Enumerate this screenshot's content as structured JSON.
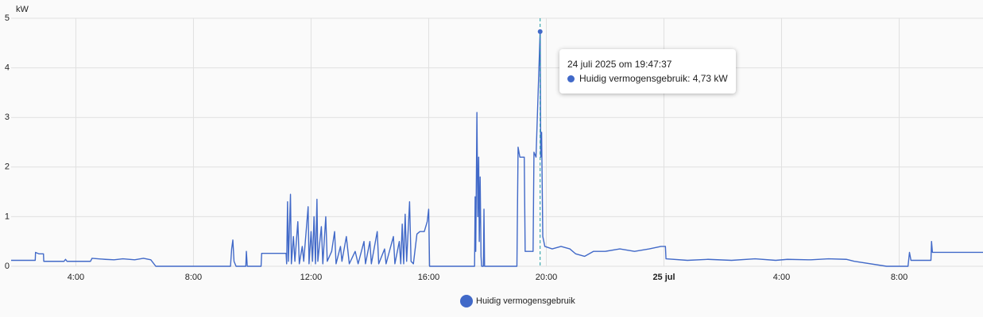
{
  "chart_data": {
    "type": "line",
    "y_label": "kW",
    "x": [
      1.8,
      2.62,
      2.63,
      2.75,
      2.9,
      2.91,
      3.6,
      3.65,
      3.7,
      4.5,
      4.55,
      5.0,
      5.3,
      5.6,
      6.0,
      6.3,
      6.55,
      6.72,
      9.26,
      9.3,
      9.34,
      9.38,
      9.45,
      9.78,
      9.8,
      9.83,
      10.3,
      10.32,
      11.15,
      11.17,
      11.2,
      11.23,
      11.3,
      11.33,
      11.4,
      11.45,
      11.55,
      11.6,
      11.7,
      11.75,
      11.9,
      11.93,
      12.0,
      12.05,
      12.1,
      12.15,
      12.2,
      12.23,
      12.35,
      12.4,
      12.5,
      12.55,
      12.7,
      12.8,
      12.85,
      13.0,
      13.05,
      13.2,
      13.3,
      13.5,
      13.6,
      13.8,
      13.85,
      14.0,
      14.05,
      14.25,
      14.3,
      14.5,
      14.55,
      14.8,
      14.85,
      15.0,
      15.05,
      15.1,
      15.15,
      15.2,
      15.25,
      15.35,
      15.4,
      15.48,
      15.6,
      15.7,
      15.85,
      15.95,
      16.0,
      16.03,
      17.56,
      17.58,
      17.6,
      17.64,
      17.67,
      17.7,
      17.72,
      17.75,
      17.78,
      17.8,
      17.86,
      17.88,
      17.9,
      19.0,
      19.04,
      19.1,
      19.25,
      19.28,
      19.55,
      19.58,
      19.65,
      19.79,
      19.81,
      19.84,
      19.88,
      19.95,
      20.2,
      20.5,
      20.8,
      21.0,
      21.3,
      21.6,
      22.0,
      22.5,
      23.0,
      23.5,
      23.9,
      24.05,
      24.07,
      24.8,
      25.5,
      26.3,
      27.1,
      27.8,
      28.2,
      29.0,
      29.6,
      30.2,
      30.47,
      31.57,
      32.3,
      32.35,
      32.4,
      33.08,
      33.1,
      33.13,
      34.85
    ],
    "series": [
      {
        "name": "Huidig vermogensgebruik",
        "color": "#4169c8",
        "values": [
          0.12,
          0.12,
          0.28,
          0.25,
          0.25,
          0.1,
          0.1,
          0.14,
          0.1,
          0.1,
          0.16,
          0.14,
          0.13,
          0.15,
          0.13,
          0.16,
          0.13,
          0,
          0,
          0.35,
          0.53,
          0.1,
          0,
          0,
          0.3,
          0,
          0,
          0.26,
          0.26,
          0.05,
          1.3,
          0.1,
          1.45,
          0.05,
          0.6,
          0.1,
          0.9,
          0.05,
          0.4,
          0.1,
          1.2,
          0.05,
          0.7,
          0.1,
          1.0,
          0.05,
          1.35,
          0.1,
          0.8,
          0.05,
          1.0,
          0.1,
          0.3,
          0.7,
          0.05,
          0.4,
          0.1,
          0.6,
          0.05,
          0.3,
          0.05,
          0.5,
          0.05,
          0.5,
          0.05,
          0.7,
          0.05,
          0.35,
          0.05,
          0.6,
          0.05,
          0.5,
          0.05,
          0.85,
          0.05,
          1.05,
          0.1,
          1.3,
          0.1,
          0.05,
          0.65,
          0.7,
          0.7,
          0.9,
          1.15,
          0,
          0,
          1.4,
          0.3,
          3.1,
          1.0,
          2.2,
          0.5,
          1.8,
          0.2,
          0,
          0,
          1.15,
          0,
          0,
          2.4,
          2.2,
          2.2,
          0.3,
          0.3,
          2.3,
          2.2,
          4.73,
          2.2,
          2.7,
          0.6,
          0.4,
          0.35,
          0.4,
          0.35,
          0.25,
          0.2,
          0.3,
          0.3,
          0.35,
          0.3,
          0.35,
          0.4,
          0.4,
          0.15,
          0.12,
          0.14,
          0.12,
          0.15,
          0.12,
          0.14,
          0.13,
          0.15,
          0.14,
          0.1,
          0,
          0,
          0.28,
          0.12,
          0.12,
          0.5,
          0.28,
          0.28
        ]
      }
    ],
    "xlim": [
      1.8,
      34.85
    ],
    "xticks": [
      {
        "value": 4,
        "label": "4:00"
      },
      {
        "value": 8,
        "label": "8:00"
      },
      {
        "value": 12,
        "label": "12:00"
      },
      {
        "value": 16,
        "label": "16:00"
      },
      {
        "value": 20,
        "label": "20:00"
      },
      {
        "value": 24,
        "label": "25 jul"
      },
      {
        "value": 28,
        "label": "4:00"
      },
      {
        "value": 32,
        "label": "8:00"
      }
    ],
    "ylim": [
      0,
      5
    ],
    "yticks": [
      0,
      1,
      2,
      3,
      4,
      5
    ],
    "grid": true,
    "tooltip": {
      "title": "24 juli 2025 om 19:47:37",
      "label": "Huidig vermogensgebruik: 4,73 kW"
    }
  }
}
